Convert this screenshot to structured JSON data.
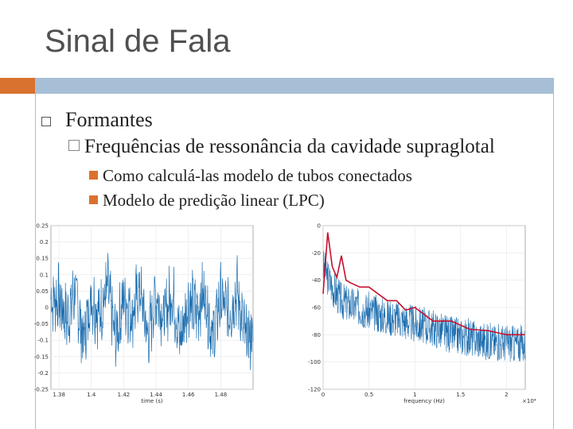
{
  "slide": {
    "title": "Sinal de Fala",
    "bullet1": "Formantes",
    "bullet2": "Frequências de ressonância da cavidade supraglotal",
    "bullet3a": "Como calculá-las  modelo de tubos conectados",
    "bullet3b": "Modelo de predição linear (LPC)"
  },
  "colors": {
    "accent": "#d9722e",
    "bar": "#a6bfd6",
    "signal": "#1f6fb0",
    "lpc": "#c8102e"
  },
  "chart_data": [
    {
      "type": "line",
      "xlabel": "time (s)",
      "ylabel": "",
      "xlim": [
        1.375,
        1.5
      ],
      "ylim": [
        -0.25,
        0.25
      ],
      "xticks": [
        "1.38",
        "1.4",
        "1.42",
        "1.44",
        "1.46",
        "1.48"
      ],
      "yticks": [
        "0.25",
        "0.2",
        "0.15",
        "0.1",
        "0.05",
        "0",
        "-0.05",
        "-0.1",
        "-0.15",
        "-0.2",
        "-0.25"
      ],
      "grid": true,
      "series": [
        {
          "x": [
            1.38,
            1.385,
            1.39,
            1.395,
            1.4,
            1.405,
            1.41,
            1.415,
            1.42,
            1.425,
            1.43,
            1.435,
            1.44,
            1.445,
            1.45,
            1.455,
            1.46,
            1.465,
            1.47,
            1.475,
            1.48,
            1.485,
            1.49,
            1.495
          ],
          "values": [
            0.05,
            -0.08,
            0.1,
            -0.2,
            0.07,
            -0.05,
            0.12,
            -0.2,
            0.06,
            -0.04,
            0.11,
            -0.19,
            0.08,
            -0.06,
            0.09,
            -0.2,
            0.05,
            -0.03,
            0.1,
            -0.19,
            0.06,
            -0.05,
            0.11,
            -0.18
          ]
        }
      ]
    },
    {
      "type": "line",
      "xlabel": "frequency (Hz)",
      "ylabel": "",
      "xlim": [
        0,
        22050
      ],
      "ylim": [
        -120,
        0
      ],
      "xticks": [
        "0",
        "0.5",
        "1",
        "1.5",
        "2"
      ],
      "x_multiplier": "×10⁴",
      "yticks": [
        "0",
        "-20",
        "-40",
        "-60",
        "-80",
        "-100",
        "-120"
      ],
      "grid": true,
      "series": [
        {
          "name": "",
          "x": [
            0,
            1000,
            2000,
            3000,
            4000,
            6000,
            8000,
            10000,
            12000,
            14000,
            16000,
            18000,
            20000,
            22000
          ],
          "values": [
            -30,
            -45,
            -55,
            -58,
            -60,
            -65,
            -68,
            -72,
            -75,
            -80,
            -82,
            -85,
            -86,
            -87
          ]
        },
        {
          "name": "",
          "x": [
            0,
            500,
            1000,
            1500,
            2000,
            2500,
            3000,
            4000,
            5000,
            7000,
            8000,
            9000,
            10000,
            12000,
            14000,
            16000,
            18000,
            20000,
            22000
          ],
          "values": [
            -50,
            -5,
            -30,
            -38,
            -22,
            -40,
            -42,
            -45,
            -45,
            -55,
            -55,
            -62,
            -60,
            -70,
            -70,
            -76,
            -77,
            -80,
            -80
          ]
        }
      ]
    }
  ]
}
